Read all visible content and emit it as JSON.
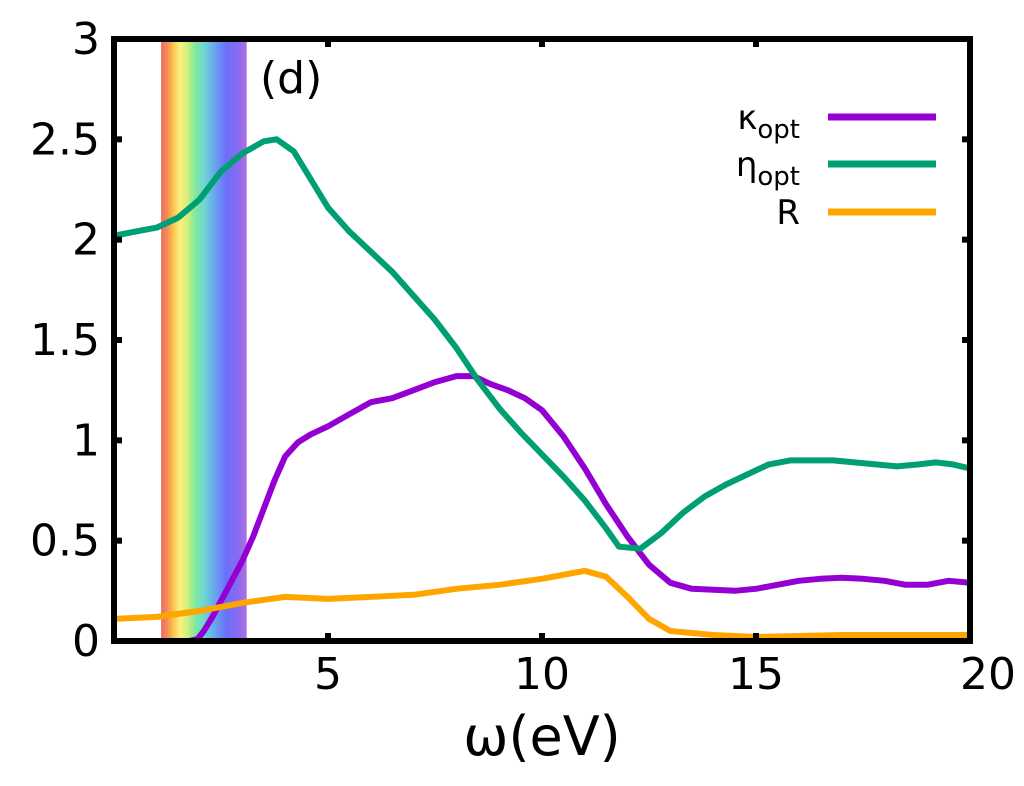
{
  "chart_data": {
    "type": "line",
    "panel_label": "(d)",
    "xlabel": "ω(eV)",
    "ylabel": "",
    "xlim": [
      0,
      20
    ],
    "ylim": [
      0,
      3
    ],
    "x_ticks": [
      5,
      10,
      15,
      20
    ],
    "x_tick_labels": [
      "5",
      "10",
      "15",
      "20"
    ],
    "y_ticks": [
      0,
      0.5,
      1,
      1.5,
      2,
      2.5,
      3
    ],
    "y_tick_labels": [
      "0",
      "0.5",
      "1",
      "1.5",
      "2",
      "2.5",
      "3"
    ],
    "visible_band": {
      "x_start": 1.1,
      "x_end": 3.1,
      "label": ""
    },
    "grid": false,
    "legend_position": "top-right",
    "series": [
      {
        "name": "κ",
        "name_sub": "opt",
        "color": "#9400D3",
        "points": [
          [
            1.75,
            0.0
          ],
          [
            1.95,
            0.01
          ],
          [
            2.1,
            0.05
          ],
          [
            2.3,
            0.12
          ],
          [
            2.5,
            0.2
          ],
          [
            2.75,
            0.3
          ],
          [
            3.0,
            0.4
          ],
          [
            3.25,
            0.52
          ],
          [
            3.5,
            0.66
          ],
          [
            3.75,
            0.8
          ],
          [
            4.0,
            0.92
          ],
          [
            4.3,
            0.99
          ],
          [
            4.6,
            1.03
          ],
          [
            5.0,
            1.07
          ],
          [
            5.5,
            1.13
          ],
          [
            6.0,
            1.19
          ],
          [
            6.5,
            1.21
          ],
          [
            7.0,
            1.25
          ],
          [
            7.5,
            1.29
          ],
          [
            8.0,
            1.32
          ],
          [
            8.4,
            1.32
          ],
          [
            8.8,
            1.28
          ],
          [
            9.2,
            1.25
          ],
          [
            9.6,
            1.21
          ],
          [
            10.0,
            1.15
          ],
          [
            10.5,
            1.02
          ],
          [
            11.0,
            0.86
          ],
          [
            11.5,
            0.68
          ],
          [
            12.0,
            0.52
          ],
          [
            12.5,
            0.38
          ],
          [
            13.0,
            0.29
          ],
          [
            13.5,
            0.26
          ],
          [
            14.0,
            0.255
          ],
          [
            14.5,
            0.25
          ],
          [
            15.0,
            0.26
          ],
          [
            15.5,
            0.28
          ],
          [
            16.0,
            0.3
          ],
          [
            16.5,
            0.31
          ],
          [
            17.0,
            0.315
          ],
          [
            17.5,
            0.31
          ],
          [
            18.0,
            0.3
          ],
          [
            18.5,
            0.28
          ],
          [
            19.0,
            0.28
          ],
          [
            19.5,
            0.3
          ],
          [
            20.0,
            0.29
          ]
        ]
      },
      {
        "name": "η",
        "name_sub": "opt",
        "color": "#009E73",
        "points": [
          [
            0.0,
            2.02
          ],
          [
            0.5,
            2.04
          ],
          [
            1.0,
            2.06
          ],
          [
            1.5,
            2.11
          ],
          [
            2.0,
            2.2
          ],
          [
            2.5,
            2.34
          ],
          [
            3.0,
            2.43
          ],
          [
            3.5,
            2.49
          ],
          [
            3.8,
            2.5
          ],
          [
            4.2,
            2.44
          ],
          [
            4.6,
            2.3
          ],
          [
            5.0,
            2.16
          ],
          [
            5.5,
            2.04
          ],
          [
            6.0,
            1.94
          ],
          [
            6.5,
            1.84
          ],
          [
            7.0,
            1.72
          ],
          [
            7.5,
            1.6
          ],
          [
            8.0,
            1.46
          ],
          [
            8.5,
            1.3
          ],
          [
            9.0,
            1.16
          ],
          [
            9.5,
            1.04
          ],
          [
            10.0,
            0.93
          ],
          [
            10.5,
            0.82
          ],
          [
            11.0,
            0.7
          ],
          [
            11.5,
            0.56
          ],
          [
            11.8,
            0.47
          ],
          [
            12.3,
            0.46
          ],
          [
            12.8,
            0.54
          ],
          [
            13.3,
            0.64
          ],
          [
            13.8,
            0.72
          ],
          [
            14.3,
            0.78
          ],
          [
            14.8,
            0.83
          ],
          [
            15.3,
            0.88
          ],
          [
            15.8,
            0.9
          ],
          [
            16.3,
            0.9
          ],
          [
            16.8,
            0.9
          ],
          [
            17.3,
            0.89
          ],
          [
            17.8,
            0.88
          ],
          [
            18.3,
            0.87
          ],
          [
            18.8,
            0.88
          ],
          [
            19.2,
            0.89
          ],
          [
            19.6,
            0.88
          ],
          [
            20.0,
            0.86
          ]
        ]
      },
      {
        "name": "R",
        "name_sub": "",
        "color": "#FFA500",
        "points": [
          [
            0.0,
            0.11
          ],
          [
            1.0,
            0.12
          ],
          [
            2.0,
            0.15
          ],
          [
            3.0,
            0.19
          ],
          [
            4.0,
            0.22
          ],
          [
            5.0,
            0.21
          ],
          [
            6.0,
            0.22
          ],
          [
            7.0,
            0.23
          ],
          [
            8.0,
            0.26
          ],
          [
            9.0,
            0.28
          ],
          [
            10.0,
            0.31
          ],
          [
            11.0,
            0.35
          ],
          [
            11.5,
            0.32
          ],
          [
            12.0,
            0.22
          ],
          [
            12.5,
            0.11
          ],
          [
            13.0,
            0.05
          ],
          [
            14.0,
            0.03
          ],
          [
            15.0,
            0.02
          ],
          [
            16.0,
            0.025
          ],
          [
            17.0,
            0.03
          ],
          [
            18.0,
            0.03
          ],
          [
            19.0,
            0.03
          ],
          [
            20.0,
            0.03
          ]
        ]
      }
    ]
  }
}
